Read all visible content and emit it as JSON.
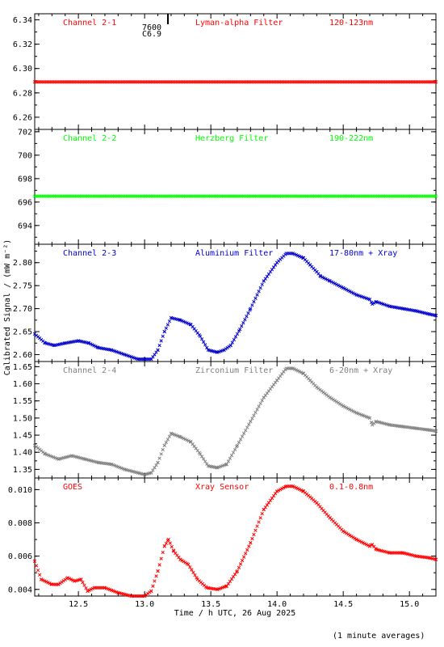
{
  "figure": {
    "xlabel": "Time / h UTC, 26 Aug 2025",
    "ylabel": "Calibrated Signal / (mW m⁻²)",
    "footnote": "(1 minute averages)",
    "annotations": [
      "7600",
      "C6.9"
    ]
  },
  "chart_data": [
    {
      "type": "scatter",
      "label_left": "Channel 2-1",
      "label_mid": "Lyman-alpha Filter",
      "label_right": "120-123nm",
      "color": "#ff0000",
      "ylim": [
        6.25,
        6.345
      ],
      "yticks": [
        6.26,
        6.28,
        6.3,
        6.32,
        6.34
      ],
      "xlim": [
        12.17,
        15.2
      ],
      "series": [
        {
          "x": [
            12.17,
            15.2
          ],
          "y": [
            6.289,
            6.289
          ]
        }
      ]
    },
    {
      "type": "scatter",
      "label_left": "Channel 2-2",
      "label_mid": "Herzberg Filter",
      "label_right": "190-222nm",
      "color": "#00ff00",
      "ylim": [
        692.4,
        702.2
      ],
      "yticks": [
        694,
        696,
        698,
        700,
        702
      ],
      "xlim": [
        12.17,
        15.2
      ],
      "series": [
        {
          "x": [
            12.17,
            15.2
          ],
          "y": [
            696.5,
            696.5
          ]
        }
      ]
    },
    {
      "type": "scatter",
      "label_left": "Channel 2-3",
      "label_mid": "Aluminium Filter",
      "label_right": "17-80nm + Xray",
      "color": "#0000cc",
      "ylim": [
        2.585,
        2.84
      ],
      "yticks": [
        2.6,
        2.65,
        2.7,
        2.75,
        2.8
      ],
      "xlim": [
        12.17,
        15.2
      ],
      "series": [
        {
          "x": [
            12.17,
            12.25,
            12.32,
            12.4,
            12.5,
            12.58,
            12.65,
            12.75,
            12.85,
            12.95,
            13.0,
            13.05,
            13.1,
            13.15,
            13.2,
            13.27,
            13.35,
            13.42,
            13.48,
            13.55,
            13.6,
            13.65,
            13.72,
            13.8,
            13.9,
            14.0,
            14.07,
            14.12,
            14.2,
            14.25,
            14.3,
            14.33,
            14.4,
            14.5,
            14.6,
            14.7,
            14.72,
            14.75,
            14.85,
            14.95,
            15.05,
            15.15,
            15.2
          ],
          "y": [
            2.645,
            2.625,
            2.62,
            2.625,
            2.63,
            2.625,
            2.615,
            2.61,
            2.6,
            2.59,
            2.59,
            2.59,
            2.61,
            2.65,
            2.68,
            2.675,
            2.665,
            2.64,
            2.61,
            2.605,
            2.61,
            2.62,
            2.655,
            2.7,
            2.76,
            2.8,
            2.82,
            2.82,
            2.81,
            2.795,
            2.78,
            2.77,
            2.76,
            2.745,
            2.73,
            2.72,
            2.71,
            2.715,
            2.705,
            2.7,
            2.695,
            2.688,
            2.685
          ]
        }
      ]
    },
    {
      "type": "scatter",
      "label_left": "Channel 2-4",
      "label_mid": "Zirconium Filter",
      "label_right": "6-20nm + Xray",
      "color": "#808080",
      "ylim": [
        1.325,
        1.665
      ],
      "yticks": [
        1.35,
        1.4,
        1.45,
        1.5,
        1.55,
        1.6,
        1.65
      ],
      "xlim": [
        12.17,
        15.2
      ],
      "series": [
        {
          "x": [
            12.17,
            12.25,
            12.35,
            12.45,
            12.55,
            12.65,
            12.75,
            12.85,
            12.95,
            13.0,
            13.05,
            13.1,
            13.15,
            13.2,
            13.27,
            13.35,
            13.42,
            13.48,
            13.55,
            13.62,
            13.7,
            13.8,
            13.9,
            14.0,
            14.07,
            14.12,
            14.2,
            14.25,
            14.3,
            14.35,
            14.4,
            14.5,
            14.6,
            14.7,
            14.72,
            14.75,
            14.85,
            14.95,
            15.05,
            15.15,
            15.2
          ],
          "y": [
            1.42,
            1.395,
            1.38,
            1.39,
            1.38,
            1.37,
            1.365,
            1.35,
            1.34,
            1.335,
            1.34,
            1.37,
            1.42,
            1.455,
            1.445,
            1.43,
            1.395,
            1.36,
            1.355,
            1.365,
            1.42,
            1.49,
            1.56,
            1.61,
            1.645,
            1.645,
            1.63,
            1.61,
            1.59,
            1.575,
            1.56,
            1.535,
            1.515,
            1.5,
            1.48,
            1.49,
            1.48,
            1.475,
            1.47,
            1.465,
            1.462
          ]
        }
      ]
    },
    {
      "type": "scatter",
      "label_left": "GOES",
      "label_mid": "Xray Sensor",
      "label_right": "0.1-0.8nm",
      "color": "#ff0000",
      "ylim": [
        0.0036,
        0.0107
      ],
      "yticks": [
        0.004,
        0.006,
        0.008,
        0.01
      ],
      "xlim": [
        12.17,
        15.2
      ],
      "xticks": [
        12.5,
        13.0,
        13.5,
        14.0,
        14.5,
        15.0
      ],
      "series": [
        {
          "x": [
            12.17,
            12.22,
            12.3,
            12.35,
            12.42,
            12.47,
            12.52,
            12.57,
            12.62,
            12.7,
            12.8,
            12.9,
            13.0,
            13.05,
            13.1,
            13.15,
            13.18,
            13.22,
            13.27,
            13.33,
            13.4,
            13.47,
            13.55,
            13.62,
            13.7,
            13.8,
            13.9,
            14.0,
            14.07,
            14.12,
            14.2,
            14.3,
            14.4,
            14.5,
            14.6,
            14.7,
            14.72,
            14.75,
            14.85,
            14.95,
            15.05,
            15.15,
            15.2
          ],
          "y": [
            0.0057,
            0.0046,
            0.0043,
            0.0043,
            0.0047,
            0.0045,
            0.0046,
            0.0039,
            0.0041,
            0.0041,
            0.0038,
            0.0036,
            0.0036,
            0.0039,
            0.0051,
            0.0066,
            0.007,
            0.0063,
            0.0058,
            0.0055,
            0.0046,
            0.0041,
            0.004,
            0.0042,
            0.0051,
            0.0068,
            0.0088,
            0.0099,
            0.0102,
            0.0102,
            0.0099,
            0.0092,
            0.0083,
            0.0075,
            0.007,
            0.0066,
            0.0067,
            0.0064,
            0.0062,
            0.0062,
            0.006,
            0.0059,
            0.0058
          ]
        }
      ]
    }
  ]
}
